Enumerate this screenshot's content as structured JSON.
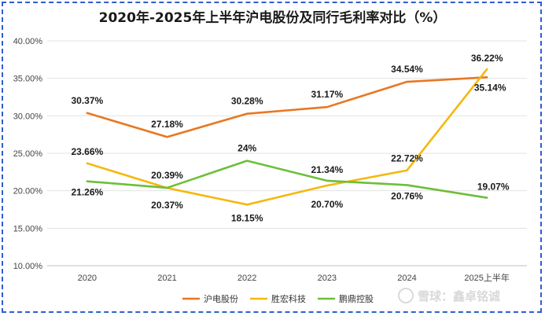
{
  "watermark": {
    "icon": "snowball-icon",
    "text": "雪球：鑫卓铭诚"
  },
  "chart_data": {
    "type": "line",
    "title": "2020年-2025年上半年沪电股份及同行毛利率对比（%）",
    "categories": [
      "2020",
      "2021",
      "2022",
      "2023",
      "2024",
      "2025上半年"
    ],
    "ylim": [
      10,
      40
    ],
    "yticks": [
      "10.00%",
      "15.00%",
      "20.00%",
      "25.00%",
      "30.00%",
      "35.00%",
      "40.00%"
    ],
    "grid": true,
    "legend_position": "bottom",
    "series": [
      {
        "name": "沪电股份",
        "color": "#e87722",
        "values": [
          30.37,
          27.18,
          30.28,
          31.17,
          34.54,
          35.14
        ],
        "labels": [
          "30.37%",
          "27.18%",
          "30.28%",
          "31.17%",
          "34.54%",
          "35.14%"
        ]
      },
      {
        "name": "胜宏科技",
        "color": "#f5b80f",
        "values": [
          23.66,
          20.37,
          18.15,
          20.7,
          22.72,
          36.22
        ],
        "labels": [
          "23.66%",
          "20.37%",
          "18.15%",
          "20.70%",
          "22.72%",
          "36.22%"
        ]
      },
      {
        "name": "鹏鼎控股",
        "color": "#6cbf3a",
        "values": [
          21.26,
          20.39,
          24,
          21.34,
          20.76,
          19.07
        ],
        "labels": [
          "21.26%",
          "20.39%",
          "24%",
          "21.34%",
          "20.76%",
          "19.07%"
        ]
      }
    ]
  }
}
